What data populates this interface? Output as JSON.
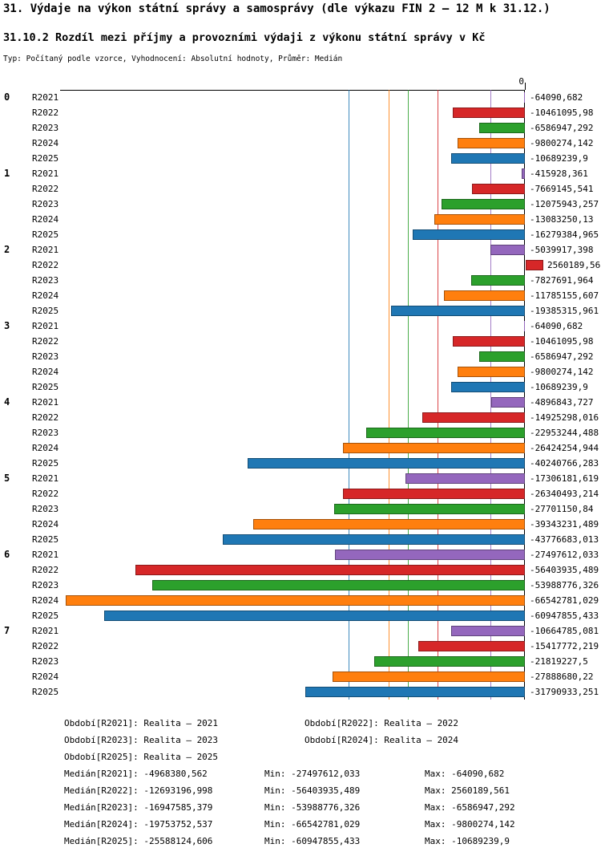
{
  "title": "31. Výdaje na výkon státní správy a samosprávy (dle výkazu FIN 2 – 12 M k 31.12.)",
  "subtitle": "31.10.2 Rozdíl mezi příjmy a provozními výdaji z výkonu státní správy v Kč",
  "meta": "Typ: Počítaný podle vzorce, Vyhodnocení: Absolutní hodnoty, Průměr: Medián",
  "chart_data": {
    "type": "bar",
    "orientation": "horizontal",
    "value_axis": {
      "zero_label": "0",
      "min": -67000000,
      "max": 2600000,
      "zero_at_right": true
    },
    "legend_position": "bottom",
    "grid": "median-lines-per-series",
    "series": [
      {
        "name": "R2021",
        "color": "#9467bd",
        "median": -4968380.562,
        "median_label": "-4968380,562"
      },
      {
        "name": "R2022",
        "color": "#d62728",
        "median": -12693196.998,
        "median_label": "-12693196,998"
      },
      {
        "name": "R2023",
        "color": "#2ca02c",
        "median": -16947585.379,
        "median_label": "-16947585,379"
      },
      {
        "name": "R2024",
        "color": "#ff7f0e",
        "median": -19753752.537,
        "median_label": "-19753752,537"
      },
      {
        "name": "R2025",
        "color": "#1f77b4",
        "median": -25588124.606,
        "median_label": "-25588124,606"
      }
    ],
    "categories": [
      "0",
      "1",
      "2",
      "3",
      "4",
      "5",
      "6",
      "7"
    ],
    "groups": [
      {
        "label": "0",
        "bars": [
          {
            "series": "R2021",
            "value": -64090.682,
            "label": "-64090,682"
          },
          {
            "series": "R2022",
            "value": -10461095.98,
            "label": "-10461095,98"
          },
          {
            "series": "R2023",
            "value": -6586947.292,
            "label": "-6586947,292"
          },
          {
            "series": "R2024",
            "value": -9800274.142,
            "label": "-9800274,142"
          },
          {
            "series": "R2025",
            "value": -10689239.9,
            "label": "-10689239,9"
          }
        ]
      },
      {
        "label": "1",
        "bars": [
          {
            "series": "R2021",
            "value": -415928.361,
            "label": "-415928,361"
          },
          {
            "series": "R2022",
            "value": -7669145.541,
            "label": "-7669145,541"
          },
          {
            "series": "R2023",
            "value": -12075943.257,
            "label": "-12075943,257"
          },
          {
            "series": "R2024",
            "value": -13083250.13,
            "label": "-13083250,13"
          },
          {
            "series": "R2025",
            "value": -16279384.965,
            "label": "-16279384,965"
          }
        ]
      },
      {
        "label": "2",
        "bars": [
          {
            "series": "R2021",
            "value": -5039917.398,
            "label": "-5039917,398"
          },
          {
            "series": "R2022",
            "value": 2560189.561,
            "label": "2560189,561"
          },
          {
            "series": "R2023",
            "value": -7827691.964,
            "label": "-7827691,964"
          },
          {
            "series": "R2024",
            "value": -11785155.607,
            "label": "-11785155,607"
          },
          {
            "series": "R2025",
            "value": -19385315.961,
            "label": "-19385315,961"
          }
        ]
      },
      {
        "label": "3",
        "bars": [
          {
            "series": "R2021",
            "value": -64090.682,
            "label": "-64090,682"
          },
          {
            "series": "R2022",
            "value": -10461095.98,
            "label": "-10461095,98"
          },
          {
            "series": "R2023",
            "value": -6586947.292,
            "label": "-6586947,292"
          },
          {
            "series": "R2024",
            "value": -9800274.142,
            "label": "-9800274,142"
          },
          {
            "series": "R2025",
            "value": -10689239.9,
            "label": "-10689239,9"
          }
        ]
      },
      {
        "label": "4",
        "bars": [
          {
            "series": "R2021",
            "value": -4896843.727,
            "label": "-4896843,727"
          },
          {
            "series": "R2022",
            "value": -14925298.016,
            "label": "-14925298,016"
          },
          {
            "series": "R2023",
            "value": -22953244.488,
            "label": "-22953244,488"
          },
          {
            "series": "R2024",
            "value": -26424254.944,
            "label": "-26424254,944"
          },
          {
            "series": "R2025",
            "value": -40240766.283,
            "label": "-40240766,283"
          }
        ]
      },
      {
        "label": "5",
        "bars": [
          {
            "series": "R2021",
            "value": -17306181.619,
            "label": "-17306181,619"
          },
          {
            "series": "R2022",
            "value": -26340493.214,
            "label": "-26340493,214"
          },
          {
            "series": "R2023",
            "value": -27701150.84,
            "label": "-27701150,84"
          },
          {
            "series": "R2024",
            "value": -39343231.489,
            "label": "-39343231,489"
          },
          {
            "series": "R2025",
            "value": -43776683.013,
            "label": "-43776683,013"
          }
        ]
      },
      {
        "label": "6",
        "bars": [
          {
            "series": "R2021",
            "value": -27497612.033,
            "label": "-27497612,033"
          },
          {
            "series": "R2022",
            "value": -56403935.489,
            "label": "-56403935,489"
          },
          {
            "series": "R2023",
            "value": -53988776.326,
            "label": "-53988776,326"
          },
          {
            "series": "R2024",
            "value": -66542781.029,
            "label": "-66542781,029"
          },
          {
            "series": "R2025",
            "value": -60947855.433,
            "label": "-60947855,433"
          }
        ]
      },
      {
        "label": "7",
        "bars": [
          {
            "series": "R2021",
            "value": -10664785.081,
            "label": "-10664785,081"
          },
          {
            "series": "R2022",
            "value": -15417772.219,
            "label": "-15417772,219"
          },
          {
            "series": "R2023",
            "value": -21819227.5,
            "label": "-21819227,5"
          },
          {
            "series": "R2024",
            "value": -27888680.22,
            "label": "-27888680,22"
          },
          {
            "series": "R2025",
            "value": -31790933.251,
            "label": "-31790933,251"
          }
        ]
      }
    ]
  },
  "legend": {
    "periods": [
      "Období[R2021]: Realita – 2021",
      "Období[R2022]: Realita – 2022",
      "Období[R2023]: Realita – 2023",
      "Období[R2024]: Realita – 2024",
      "Období[R2025]: Realita – 2025"
    ],
    "stats": [
      {
        "median": "Medián[R2021]: -4968380,562",
        "min": "Min: -27497612,033",
        "max": "Max: -64090,682"
      },
      {
        "median": "Medián[R2022]: -12693196,998",
        "min": "Min: -56403935,489",
        "max": "Max: 2560189,561"
      },
      {
        "median": "Medián[R2023]: -16947585,379",
        "min": "Min: -53988776,326",
        "max": "Max: -6586947,292"
      },
      {
        "median": "Medián[R2024]: -19753752,537",
        "min": "Min: -66542781,029",
        "max": "Max: -9800274,142"
      },
      {
        "median": "Medián[R2025]: -25588124,606",
        "min": "Min: -60947855,433",
        "max": "Max: -10689239,9"
      }
    ]
  }
}
